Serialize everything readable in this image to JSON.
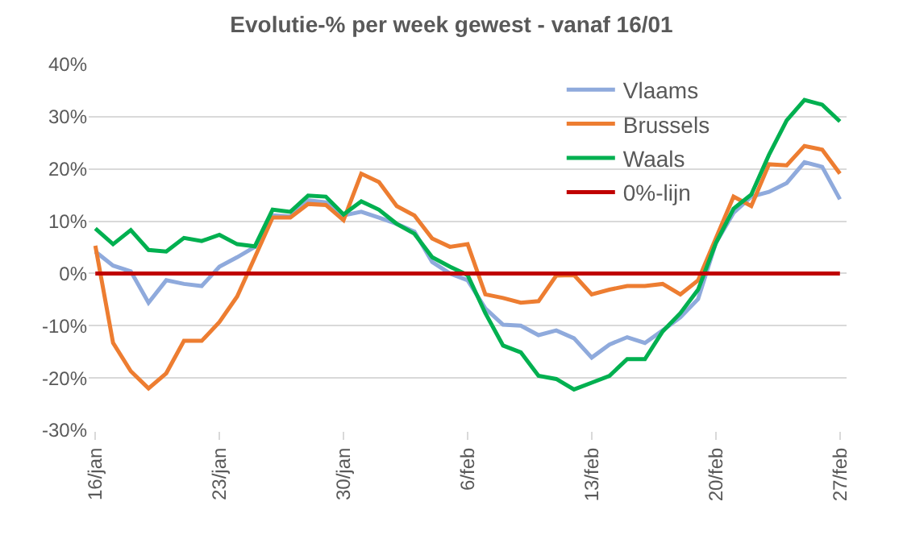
{
  "chart_data": {
    "type": "line",
    "title": "Evolutie-% per week gewest - vanaf 16/01",
    "x": [
      "--01-16",
      "--01-17",
      "--01-18",
      "--01-19",
      "--01-20",
      "--01-21",
      "--01-22",
      "--01-23",
      "--01-24",
      "--01-25",
      "--01-26",
      "--01-27",
      "--01-28",
      "--01-29",
      "--01-30",
      "--01-31",
      "--02-01",
      "--02-02",
      "--02-03",
      "--02-04",
      "--02-05",
      "--02-06",
      "--02-07",
      "--02-08",
      "--02-09",
      "--02-10",
      "--02-11",
      "--02-12",
      "--02-13",
      "--02-14",
      "--02-15",
      "--02-16",
      "--02-17",
      "--02-18",
      "--02-19",
      "--02-20",
      "--02-21",
      "--02-22",
      "--02-23",
      "--02-24",
      "--02-25",
      "--02-26",
      "--02-27"
    ],
    "series": [
      {
        "name": "Vlaams",
        "color": "#8faadc",
        "values": [
          4.2,
          1.5,
          0.4,
          -5.6,
          -1.3,
          -2.0,
          -2.4,
          1.3,
          3.1,
          5.1,
          11.1,
          10.9,
          14.0,
          13.6,
          11.1,
          11.8,
          10.7,
          9.5,
          8.0,
          2.2,
          0.0,
          -1.3,
          -6.7,
          -9.8,
          -10.0,
          -11.8,
          -10.9,
          -12.4,
          -16.1,
          -13.6,
          -12.2,
          -13.3,
          -10.9,
          -8.4,
          -4.9,
          5.8,
          11.6,
          14.7,
          15.6,
          17.3,
          21.3,
          20.4,
          14.2
        ]
      },
      {
        "name": "Brussels",
        "color": "#ed7d31",
        "values": [
          5.3,
          -13.3,
          -18.7,
          -22.0,
          -19.1,
          -12.9,
          -12.9,
          -9.3,
          -4.4,
          3.1,
          10.7,
          10.7,
          13.3,
          13.1,
          10.2,
          19.1,
          17.5,
          12.9,
          11.1,
          6.7,
          5.1,
          5.6,
          -4.0,
          -4.7,
          -5.6,
          -5.3,
          -0.4,
          -0.3,
          -4.0,
          -3.1,
          -2.4,
          -2.4,
          -2.0,
          -4.0,
          -1.3,
          6.7,
          14.7,
          12.9,
          20.9,
          20.7,
          24.4,
          23.7,
          19.1
        ]
      },
      {
        "name": "Waals",
        "color": "#00b050",
        "values": [
          8.6,
          5.6,
          8.3,
          4.5,
          4.2,
          6.8,
          6.2,
          7.4,
          5.6,
          5.2,
          12.2,
          11.8,
          14.9,
          14.7,
          11.3,
          13.8,
          12.2,
          9.5,
          7.6,
          3.1,
          1.3,
          -0.3,
          -7.6,
          -13.8,
          -15.1,
          -19.6,
          -20.2,
          -22.2,
          -20.9,
          -19.6,
          -16.4,
          -16.4,
          -11.1,
          -7.6,
          -3.1,
          5.8,
          12.4,
          15.1,
          22.7,
          29.3,
          33.2,
          32.3,
          29.1
        ]
      },
      {
        "name": "0%-lijn",
        "color": "#c00000",
        "values": [
          0,
          0,
          0,
          0,
          0,
          0,
          0,
          0,
          0,
          0,
          0,
          0,
          0,
          0,
          0,
          0,
          0,
          0,
          0,
          0,
          0,
          0,
          0,
          0,
          0,
          0,
          0,
          0,
          0,
          0,
          0,
          0,
          0,
          0,
          0,
          0,
          0,
          0,
          0,
          0,
          0,
          0,
          0
        ]
      }
    ],
    "xlim": [
      "--01-15T15:00",
      "--02-27T09:00"
    ],
    "xticks": [
      {
        "value": "--01-16",
        "label": "16/jan"
      },
      {
        "value": "--01-23",
        "label": "23/jan"
      },
      {
        "value": "--01-30",
        "label": "30/jan"
      },
      {
        "value": "--02-06",
        "label": "6/feb"
      },
      {
        "value": "--02-13",
        "label": "13/feb"
      },
      {
        "value": "--02-20",
        "label": "20/feb"
      },
      {
        "value": "--02-27",
        "label": "27/feb"
      }
    ],
    "ylim": [
      -30,
      40
    ],
    "yticks": [
      {
        "value": -30,
        "label": "-30%"
      },
      {
        "value": -20,
        "label": "-20%"
      },
      {
        "value": -10,
        "label": "-10%"
      },
      {
        "value": 0,
        "label": "0%"
      },
      {
        "value": 10,
        "label": "10%"
      },
      {
        "value": 20,
        "label": "20%"
      },
      {
        "value": 30,
        "label": "30%"
      },
      {
        "value": 40,
        "label": "40%"
      }
    ],
    "grid": "y",
    "legend": "top right",
    "marker": "none",
    "line_style": "solid"
  }
}
